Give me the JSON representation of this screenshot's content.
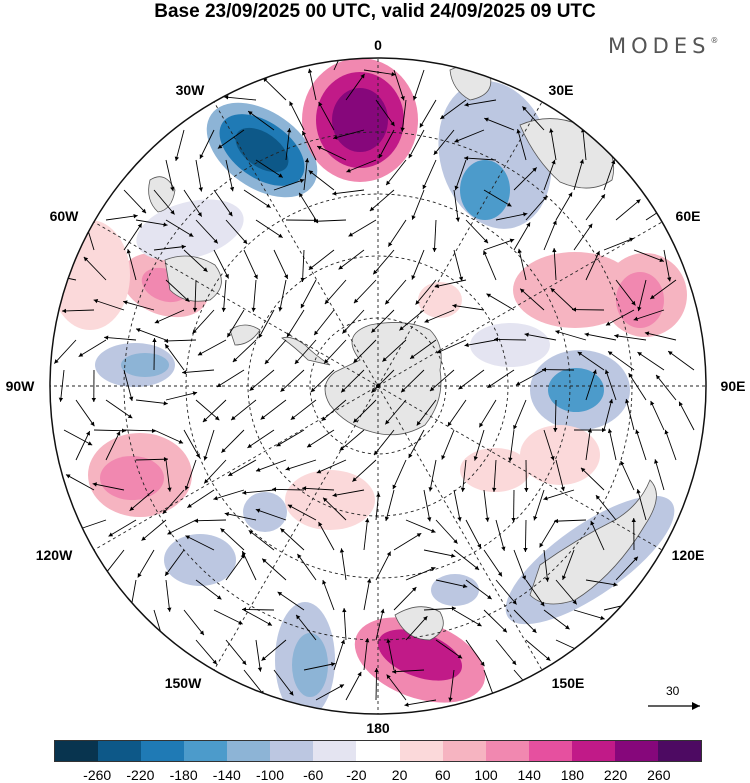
{
  "title": "Base 23/09/2025 00 UTC, valid 24/09/2025 09 UTC",
  "brand": {
    "name": "MODES",
    "mark": "®"
  },
  "longitude_labels": {
    "n": "0",
    "ne": "30E",
    "e1": "60E",
    "e": "90E",
    "e2": "120E",
    "se": "150E",
    "s": "180",
    "sw": "150W",
    "w2": "120W",
    "w": "90W",
    "w1": "60W",
    "nw": "30W"
  },
  "reference_vector": {
    "label": "30",
    "icon": "arrow-icon"
  },
  "colorbar": {
    "ticks": [
      "-260",
      "-220",
      "-180",
      "-140",
      "-100",
      "-60",
      "-20",
      "20",
      "60",
      "100",
      "140",
      "180",
      "220",
      "260"
    ],
    "colors": [
      "#08344f",
      "#0d5888",
      "#1f7ab5",
      "#4c9bcb",
      "#8db4d6",
      "#bcc7e1",
      "#e4e4f1",
      "#ffffff",
      "#fbd9da",
      "#f6b4c1",
      "#f188b0",
      "#e6509f",
      "#c11a88",
      "#86077b",
      "#4d0a62"
    ]
  },
  "map_colors": {
    "land": "#e6e6e6",
    "coast": "#555555",
    "grid": "#222222",
    "arrow": "#000000"
  }
}
